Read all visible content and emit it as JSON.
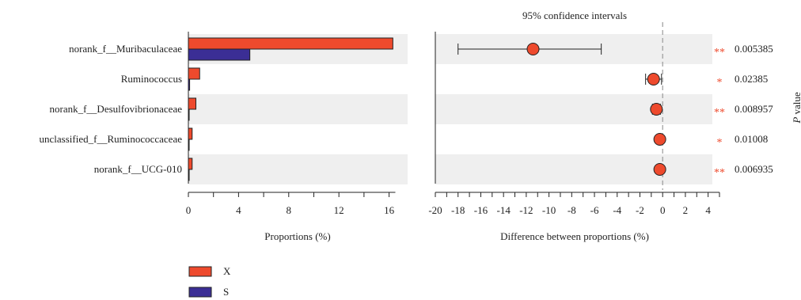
{
  "chart_data": [
    {
      "type": "bar",
      "orientation": "horizontal",
      "xlabel": "Proportions (%)",
      "xlim": [
        0,
        16.5
      ],
      "xticks": [
        "0",
        "4",
        "8",
        "12",
        "16"
      ],
      "categories": [
        "norank_f__Muribaculaceae",
        "Ruminococcus",
        "norank_f__Desulfovibrionaceae",
        "unclassified_f__Ruminococcaceae",
        "norank_f__UCG-010"
      ],
      "series": [
        {
          "name": "X",
          "color": "#ee4a2d",
          "values": [
            16.3,
            0.9,
            0.6,
            0.3,
            0.3
          ]
        },
        {
          "name": "S",
          "color": "#3b2e95",
          "values": [
            4.9,
            0.1,
            0.05,
            0.05,
            0.05
          ]
        }
      ],
      "legend": "bottom-left",
      "row_shading": "alternating"
    },
    {
      "type": "scatter",
      "title": "95% confidence intervals",
      "xlabel": "Difference between proportions (%)",
      "xlim": [
        -20,
        5
      ],
      "xticks": [
        "-20",
        "-18",
        "-16",
        "-14",
        "-12",
        "-10",
        "-8",
        "-6",
        "-4",
        "-2",
        "0",
        "2",
        "4"
      ],
      "categories": [
        "norank_f__Muribaculaceae",
        "Ruminococcus",
        "norank_f__Desulfovibrionaceae",
        "unclassified_f__Ruminococcaceae",
        "norank_f__UCG-010"
      ],
      "estimates": [
        -11.4,
        -0.8,
        -0.55,
        -0.25,
        -0.25
      ],
      "ci_low": [
        -18.0,
        -1.5,
        -0.9,
        -0.5,
        -0.5
      ],
      "ci_high": [
        -5.4,
        -0.1,
        -0.2,
        0.0,
        0.0
      ],
      "point_color": "#ee4a2d",
      "reference_line": 0,
      "significance": [
        "**",
        "*",
        "**",
        "*",
        "**"
      ],
      "significance_color": "#ee4a2d",
      "p_values": [
        "0.005385",
        "0.02385",
        "0.008957",
        "0.01008",
        "0.006935"
      ],
      "p_label_italic": "P",
      "p_label_rest": " value"
    }
  ]
}
